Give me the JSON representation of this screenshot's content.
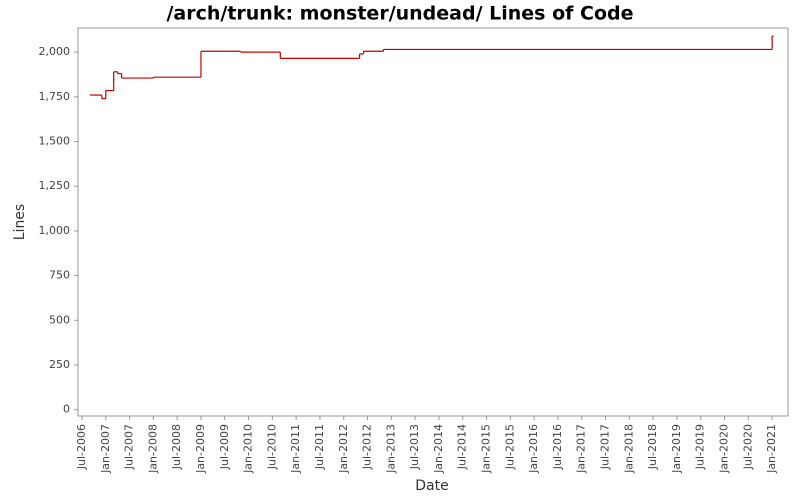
{
  "chart_data": {
    "type": "line",
    "step": true,
    "title": "/arch/trunk: monster/undead/ Lines of Code",
    "x_label": "Date",
    "y_label": "Lines",
    "x": [
      "2006-09",
      "2006-12",
      "2007-01",
      "2007-03",
      "2007-04",
      "2007-05",
      "2008-01",
      "2009-01",
      "2009-11",
      "2010-09",
      "2012-05",
      "2012-06",
      "2012-11",
      "2021-01"
    ],
    "series": [
      {
        "name": "Lines",
        "color": "#c00000",
        "values": [
          1760,
          1740,
          1785,
          1890,
          1880,
          1855,
          1860,
          2005,
          2000,
          1965,
          1990,
          2005,
          2015,
          2090
        ]
      }
    ],
    "xlim": [
      "2006-06",
      "2021-05"
    ],
    "xticks": [
      {
        "value": "2006-07",
        "label": "Jul-2006"
      },
      {
        "value": "2007-01",
        "label": "Jan-2007"
      },
      {
        "value": "2007-07",
        "label": "Jul-2007"
      },
      {
        "value": "2008-01",
        "label": "Jan-2008"
      },
      {
        "value": "2008-07",
        "label": "Jul-2008"
      },
      {
        "value": "2009-01",
        "label": "Jan-2009"
      },
      {
        "value": "2009-07",
        "label": "Jul-2009"
      },
      {
        "value": "2010-01",
        "label": "Jan-2010"
      },
      {
        "value": "2010-07",
        "label": "Jul-2010"
      },
      {
        "value": "2011-01",
        "label": "Jan-2011"
      },
      {
        "value": "2011-07",
        "label": "Jul-2011"
      },
      {
        "value": "2012-01",
        "label": "Jan-2012"
      },
      {
        "value": "2012-07",
        "label": "Jul-2012"
      },
      {
        "value": "2013-01",
        "label": "Jan-2013"
      },
      {
        "value": "2013-07",
        "label": "Jul-2013"
      },
      {
        "value": "2014-01",
        "label": "Jan-2014"
      },
      {
        "value": "2014-07",
        "label": "Jul-2014"
      },
      {
        "value": "2015-01",
        "label": "Jan-2015"
      },
      {
        "value": "2015-07",
        "label": "Jul-2015"
      },
      {
        "value": "2016-01",
        "label": "Jan-2016"
      },
      {
        "value": "2016-07",
        "label": "Jul-2016"
      },
      {
        "value": "2017-01",
        "label": "Jan-2017"
      },
      {
        "value": "2017-07",
        "label": "Jul-2017"
      },
      {
        "value": "2018-01",
        "label": "Jan-2018"
      },
      {
        "value": "2018-07",
        "label": "Jul-2018"
      },
      {
        "value": "2019-01",
        "label": "Jan-2019"
      },
      {
        "value": "2019-07",
        "label": "Jul-2019"
      },
      {
        "value": "2020-01",
        "label": "Jan-2020"
      },
      {
        "value": "2020-07",
        "label": "Jul-2020"
      },
      {
        "value": "2021-01",
        "label": "Jan-2021"
      }
    ],
    "ylim": [
      -35,
      2135
    ],
    "yticks": [
      0,
      250,
      500,
      750,
      {
        "value": 1000,
        "label": "1,000"
      },
      {
        "value": 1250,
        "label": "1,250"
      },
      {
        "value": 1500,
        "label": "1,500"
      },
      {
        "value": 1750,
        "label": "1,750"
      },
      {
        "value": 2000,
        "label": "2,000"
      }
    ],
    "grid": false
  }
}
